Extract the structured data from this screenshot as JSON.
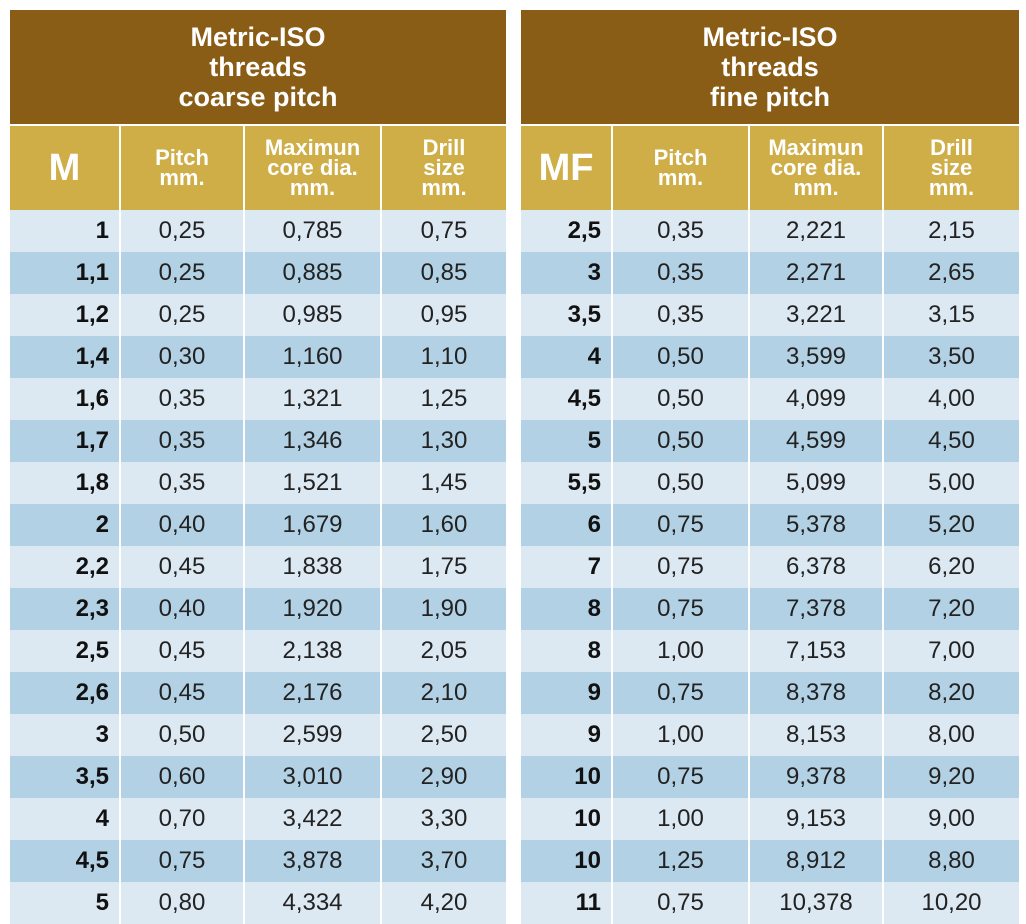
{
  "coarse": {
    "title": [
      "Metric-ISO",
      "threads",
      "coarse pitch"
    ],
    "headers": [
      [
        "M"
      ],
      [
        "Pitch",
        "mm."
      ],
      [
        "Maximun",
        "core dia.",
        "mm."
      ],
      [
        "Drill",
        "size",
        "mm."
      ]
    ],
    "rows": [
      [
        "1",
        "0,25",
        "0,785",
        "0,75"
      ],
      [
        "1,1",
        "0,25",
        "0,885",
        "0,85"
      ],
      [
        "1,2",
        "0,25",
        "0,985",
        "0,95"
      ],
      [
        "1,4",
        "0,30",
        "1,160",
        "1,10"
      ],
      [
        "1,6",
        "0,35",
        "1,321",
        "1,25"
      ],
      [
        "1,7",
        "0,35",
        "1,346",
        "1,30"
      ],
      [
        "1,8",
        "0,35",
        "1,521",
        "1,45"
      ],
      [
        "2",
        "0,40",
        "1,679",
        "1,60"
      ],
      [
        "2,2",
        "0,45",
        "1,838",
        "1,75"
      ],
      [
        "2,3",
        "0,40",
        "1,920",
        "1,90"
      ],
      [
        "2,5",
        "0,45",
        "2,138",
        "2,05"
      ],
      [
        "2,6",
        "0,45",
        "2,176",
        "2,10"
      ],
      [
        "3",
        "0,50",
        "2,599",
        "2,50"
      ],
      [
        "3,5",
        "0,60",
        "3,010",
        "2,90"
      ],
      [
        "4",
        "0,70",
        "3,422",
        "3,30"
      ],
      [
        "4,5",
        "0,75",
        "3,878",
        "3,70"
      ],
      [
        "5",
        "0,80",
        "4,334",
        "4,20"
      ]
    ]
  },
  "fine": {
    "title": [
      "Metric-ISO",
      "threads",
      "fine pitch"
    ],
    "headers": [
      [
        "MF"
      ],
      [
        "Pitch",
        "mm."
      ],
      [
        "Maximun",
        "core dia.",
        "mm."
      ],
      [
        "Drill",
        "size",
        "mm."
      ]
    ],
    "rows": [
      [
        "2,5",
        "0,35",
        "2,221",
        "2,15"
      ],
      [
        "3",
        "0,35",
        "2,271",
        "2,65"
      ],
      [
        "3,5",
        "0,35",
        "3,221",
        "3,15"
      ],
      [
        "4",
        "0,50",
        "3,599",
        "3,50"
      ],
      [
        "4,5",
        "0,50",
        "4,099",
        "4,00"
      ],
      [
        "5",
        "0,50",
        "4,599",
        "4,50"
      ],
      [
        "5,5",
        "0,50",
        "5,099",
        "5,00"
      ],
      [
        "6",
        "0,75",
        "5,378",
        "5,20"
      ],
      [
        "7",
        "0,75",
        "6,378",
        "6,20"
      ],
      [
        "8",
        "0,75",
        "7,378",
        "7,20"
      ],
      [
        "8",
        "1,00",
        "7,153",
        "7,00"
      ],
      [
        "9",
        "0,75",
        "8,378",
        "8,20"
      ],
      [
        "9",
        "1,00",
        "8,153",
        "8,00"
      ],
      [
        "10",
        "0,75",
        "9,378",
        "9,20"
      ],
      [
        "10",
        "1,00",
        "9,153",
        "9,00"
      ],
      [
        "10",
        "1,25",
        "8,912",
        "8,80"
      ],
      [
        "11",
        "0,75",
        "10,378",
        "10,20"
      ]
    ]
  }
}
